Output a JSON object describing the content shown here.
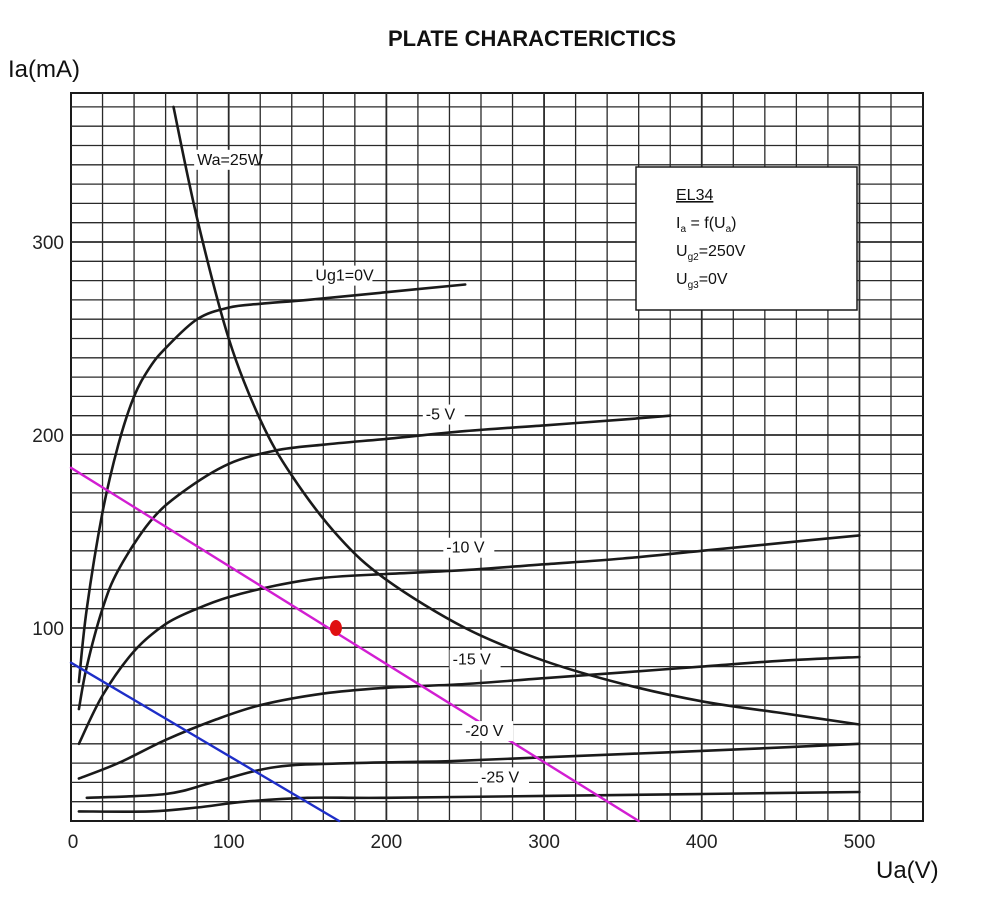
{
  "chart_data": {
    "type": "line",
    "title": "PLATE CHARACTERICTICS",
    "xlabel": "Ua(V)",
    "ylabel": "Ia(mA)",
    "xlim": [
      0,
      540
    ],
    "ylim": [
      0,
      380
    ],
    "x_ticks": [
      0,
      100,
      200,
      300,
      400,
      500
    ],
    "y_ticks": [
      100,
      200,
      300
    ],
    "grid": true,
    "legend_box": {
      "tube": "EL34",
      "line2": "I",
      "line2_sub": "a",
      "line2_mid": " = f(U",
      "line2_sub2": "a",
      "line2_end": ")",
      "line3": "U",
      "line3_sub": "g2",
      "line3_end": "=250V",
      "line4": "U",
      "line4_sub": "g3",
      "line4_end": "=0V",
      "position": "top-right"
    },
    "series": [
      {
        "name": "Ug1=0V",
        "color": "#1a1a1a",
        "x": [
          5,
          10,
          20,
          30,
          40,
          50,
          60,
          80,
          100,
          120,
          150,
          200,
          250
        ],
        "y": [
          72,
          110,
          160,
          195,
          220,
          235,
          245,
          260,
          266,
          268,
          270,
          274,
          278
        ]
      },
      {
        "name": "-5 V",
        "color": "#1a1a1a",
        "x": [
          5,
          10,
          20,
          30,
          50,
          70,
          100,
          130,
          160,
          200,
          250,
          300,
          350,
          380
        ],
        "y": [
          58,
          80,
          110,
          130,
          155,
          170,
          185,
          192,
          195,
          198,
          202,
          205,
          208,
          210
        ]
      },
      {
        "name": "-10 V",
        "color": "#1a1a1a",
        "x": [
          5,
          20,
          40,
          60,
          80,
          100,
          130,
          160,
          200,
          250,
          300,
          350,
          400,
          450,
          500
        ],
        "y": [
          40,
          65,
          88,
          102,
          110,
          116,
          122,
          126,
          128,
          130,
          133,
          136,
          140,
          144,
          148
        ]
      },
      {
        "name": "-15 V",
        "color": "#1a1a1a",
        "x": [
          5,
          30,
          60,
          90,
          120,
          160,
          200,
          250,
          300,
          350,
          400,
          450,
          500
        ],
        "y": [
          22,
          30,
          42,
          52,
          60,
          66,
          69,
          71,
          74,
          77,
          80,
          83,
          85
        ]
      },
      {
        "name": "-20 V",
        "color": "#1a1a1a",
        "x": [
          10,
          60,
          90,
          130,
          180,
          240,
          300,
          360,
          420,
          500
        ],
        "y": [
          12,
          14,
          20,
          28,
          30,
          31,
          33,
          35,
          37,
          40
        ]
      },
      {
        "name": "-25 V",
        "color": "#1a1a1a",
        "x": [
          5,
          50,
          80,
          110,
          150,
          200,
          300,
          400,
          500
        ],
        "y": [
          5,
          5,
          7,
          10,
          12,
          12,
          13,
          14,
          15
        ]
      },
      {
        "name": "Wa=25W",
        "color": "#1a1a1a",
        "x": [
          65,
          80,
          100,
          120,
          140,
          170,
          200,
          250,
          300,
          350,
          400,
          450,
          500
        ],
        "y": [
          370,
          312,
          250,
          208,
          179,
          147,
          125,
          100,
          83,
          71,
          62,
          56,
          50
        ]
      },
      {
        "name": "",
        "color": "#d21ed2",
        "x": [
          0,
          360
        ],
        "y": [
          183,
          0
        ]
      },
      {
        "name": "",
        "color": "#1e2ec8",
        "x": [
          0,
          170
        ],
        "y": [
          82,
          0
        ]
      }
    ],
    "markers": [
      {
        "x": 168,
        "y": 100,
        "color": "#e01010"
      }
    ]
  }
}
